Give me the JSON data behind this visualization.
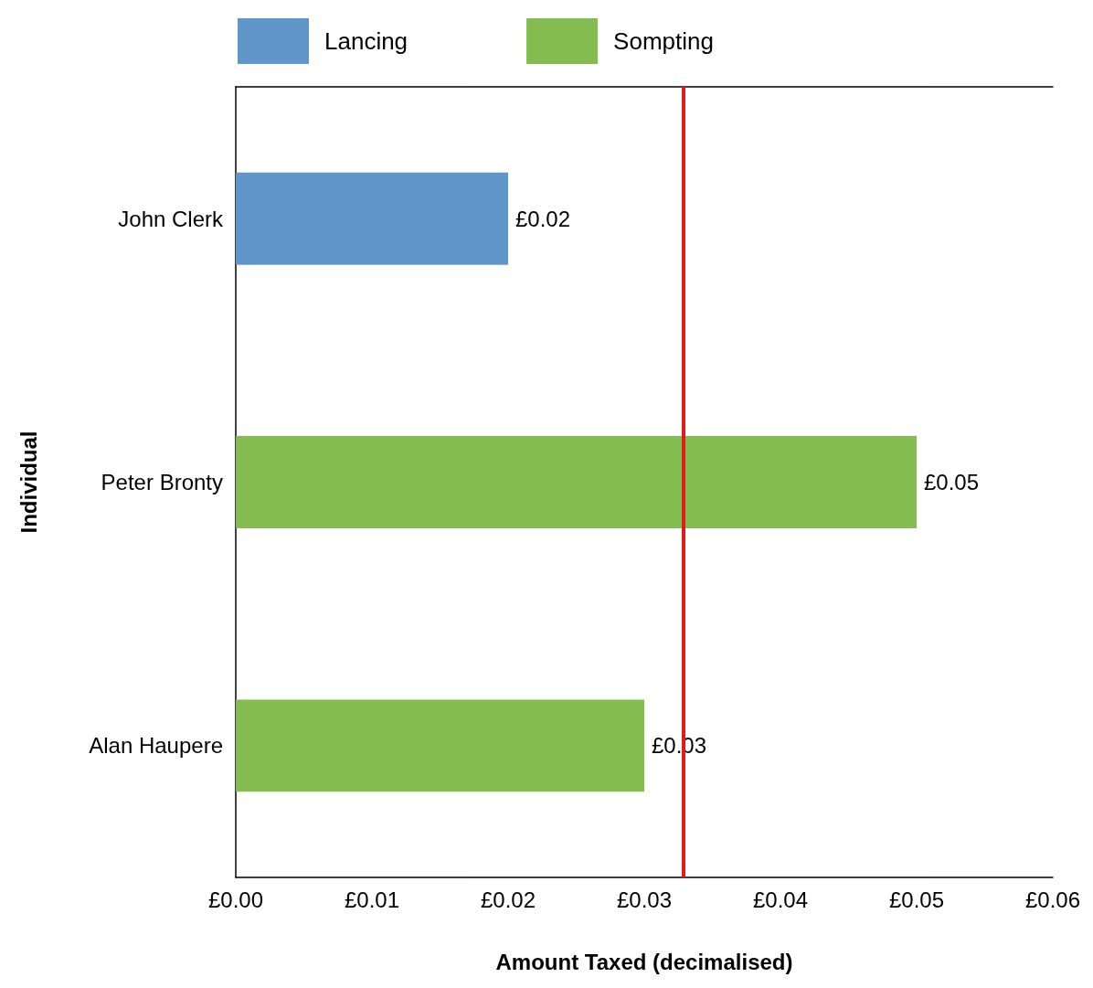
{
  "chart_data": {
    "type": "bar",
    "orientation": "horizontal",
    "xlabel": "Amount Taxed (decimalised)",
    "ylabel": "Individual",
    "categories": [
      "John Clerk",
      "Peter Bronty",
      "Alan Haupere"
    ],
    "series": [
      {
        "name": "Lancing",
        "color": "#6096c9",
        "values": [
          0.02,
          null,
          null
        ],
        "value_labels": [
          "£0.02",
          null,
          null
        ]
      },
      {
        "name": "Sompting",
        "color": "#84bd4f",
        "values": [
          null,
          0.05,
          0.03
        ],
        "value_labels": [
          null,
          "£0.05",
          "£0.03"
        ]
      }
    ],
    "xlim": [
      0,
      0.06
    ],
    "xticks": [
      {
        "value": 0,
        "label": "£0.00"
      },
      {
        "value": 0.01,
        "label": "£0.01"
      },
      {
        "value": 0.02,
        "label": "£0.02"
      },
      {
        "value": 0.03,
        "label": "£0.03"
      },
      {
        "value": 0.04,
        "label": "£0.04"
      },
      {
        "value": 0.05,
        "label": "£0.05"
      },
      {
        "value": 0.06,
        "label": "£0.06"
      }
    ],
    "ref_lines": [
      {
        "axis": "x",
        "value": 0.0329,
        "color": "#e01b1b"
      }
    ],
    "grid": false,
    "legend": "top"
  }
}
